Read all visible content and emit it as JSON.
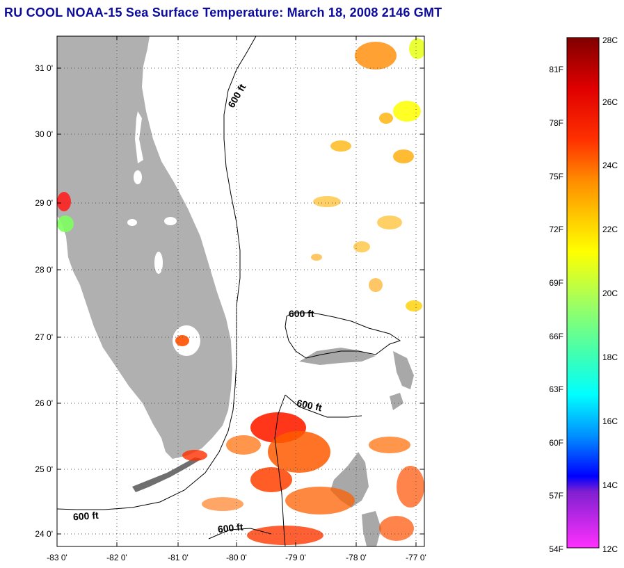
{
  "title": "RU COOL  NOAA-15  Sea Surface Temperature:  March 18, 2008 2146 GMT",
  "map": {
    "lat_ticks": [
      "31 0'",
      "30 0'",
      "29 0'",
      "28 0'",
      "27 0'",
      "26 0'",
      "25 0'",
      "24 0'"
    ],
    "lon_ticks": [
      "-83 0'",
      "-82 0'",
      "-81 0'",
      "-80 0'",
      "-79 0'",
      "-78 0'",
      "-77 0'"
    ],
    "contour_label": "600 ft",
    "colors": {
      "land": "#b0b0b0",
      "ocean": "#ffffff",
      "grid": "#555555",
      "contour": "#000000"
    }
  },
  "colorbar": {
    "fahrenheit_labels": [
      "81F",
      "78F",
      "75F",
      "72F",
      "69F",
      "66F",
      "63F",
      "60F",
      "57F",
      "54F"
    ],
    "celsius_labels": [
      "28C",
      "26C",
      "24C",
      "22C",
      "20C",
      "18C",
      "16C",
      "14C",
      "12C"
    ],
    "gradient_stops": [
      "#800000",
      "#ff0000",
      "#ff8000",
      "#ffff00",
      "#80ff80",
      "#00ffff",
      "#0080ff",
      "#0000ff",
      "#ff30ff"
    ]
  }
}
